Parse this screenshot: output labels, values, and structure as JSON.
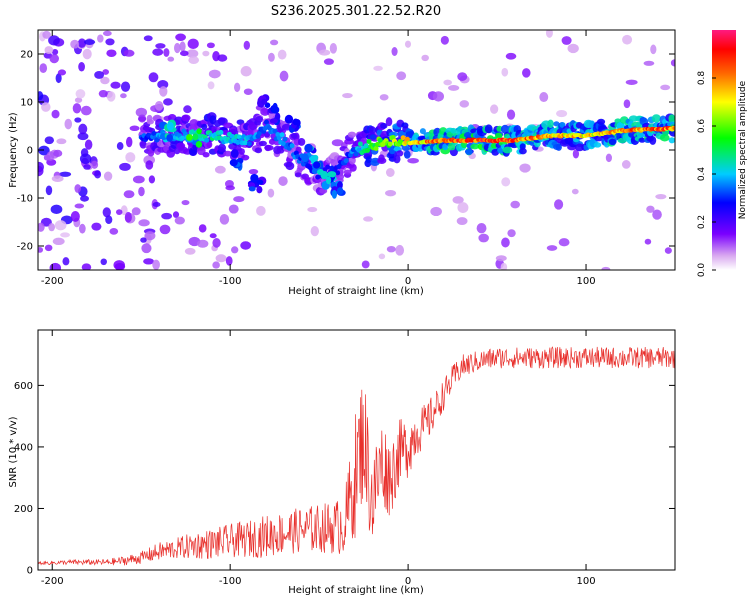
{
  "title": "S236.2025.301.22.52.R20",
  "chart_data": [
    {
      "type": "heatmap",
      "title": "S236.2025.301.22.52.R20",
      "xlabel": "Height of straight line (km)",
      "ylabel": "Frequency (Hz)",
      "xlim": [
        -208,
        150
      ],
      "ylim": [
        -25,
        25
      ],
      "xticks": [
        -200,
        -100,
        0,
        100
      ],
      "yticks": [
        -20,
        -10,
        0,
        10,
        20
      ],
      "colorbar": {
        "label": "Normalized spectral amplitude",
        "range": [
          0,
          1
        ],
        "ticks": [
          0.0,
          0.2,
          0.4,
          0.6,
          0.8
        ],
        "tick_labels": [
          "0.0",
          "0.2",
          "0.4",
          "0.6",
          "0.8"
        ]
      },
      "ridge": {
        "description_values": "centre frequency (Hz) of the strong signal vs height (km)",
        "x": [
          -150,
          -130,
          -110,
          -90,
          -80,
          -70,
          -60,
          -50,
          -40,
          -30,
          -20,
          -10,
          0,
          20,
          40,
          60,
          80,
          100,
          120,
          150
        ],
        "freq": [
          3,
          3,
          3,
          2,
          5,
          2,
          -2,
          -5,
          -4,
          0,
          1,
          2,
          1.5,
          2,
          2,
          2,
          3,
          3,
          4,
          4.5
        ],
        "amplitude": [
          0.35,
          0.45,
          0.5,
          0.45,
          0.35,
          0.4,
          0.35,
          0.3,
          0.3,
          0.4,
          0.6,
          0.7,
          0.8,
          0.95,
          1.0,
          0.95,
          0.85,
          0.8,
          0.9,
          0.95
        ]
      },
      "cells": [
        {
          "x": -82,
          "f": 9.5,
          "a": 0.3
        },
        {
          "x": -75,
          "f": 7.5,
          "a": 0.3
        },
        {
          "x": -65,
          "f": 5,
          "a": 0.35
        },
        {
          "x": -55,
          "f": -1,
          "a": 0.4
        },
        {
          "x": -50,
          "f": -4,
          "a": 0.45
        },
        {
          "x": -45,
          "f": -6,
          "a": 0.4
        },
        {
          "x": -40,
          "f": -8,
          "a": 0.35
        },
        {
          "x": -85,
          "f": -7,
          "a": 0.3
        },
        {
          "x": -95,
          "f": -2,
          "a": 0.35
        },
        {
          "x": -120,
          "f": 2.5,
          "a": 0.55
        },
        {
          "x": -135,
          "f": 4,
          "a": 0.5
        }
      ]
    },
    {
      "type": "line",
      "xlabel": "Height of straight line (km)",
      "ylabel": "SNR (10 * v/v)",
      "xlim": [
        -208,
        150
      ],
      "ylim": [
        0,
        780
      ],
      "xticks": [
        -200,
        -100,
        0,
        100
      ],
      "yticks": [
        0,
        200,
        400,
        600
      ],
      "series": [
        {
          "name": "SNR",
          "color": "#e8302c",
          "x": [
            -208,
            -190,
            -170,
            -160,
            -150,
            -140,
            -130,
            -120,
            -110,
            -100,
            -90,
            -80,
            -70,
            -60,
            -50,
            -40,
            -35,
            -30,
            -25,
            -22,
            -20,
            -15,
            -10,
            -5,
            0,
            5,
            10,
            15,
            20,
            25,
            30,
            40,
            50,
            60,
            80,
            100,
            120,
            150
          ],
          "y": [
            22,
            25,
            25,
            30,
            40,
            60,
            70,
            80,
            85,
            95,
            100,
            110,
            120,
            130,
            135,
            140,
            160,
            300,
            450,
            300,
            220,
            350,
            300,
            380,
            400,
            450,
            470,
            520,
            570,
            620,
            660,
            680,
            690,
            690,
            690,
            690,
            690,
            690
          ],
          "noise": [
            5,
            8,
            10,
            15,
            20,
            30,
            35,
            45,
            50,
            55,
            60,
            70,
            70,
            75,
            80,
            90,
            120,
            200,
            220,
            180,
            170,
            150,
            130,
            110,
            100,
            80,
            70,
            60,
            50,
            45,
            40,
            35,
            35,
            35,
            35,
            35,
            35,
            35
          ]
        }
      ]
    }
  ]
}
